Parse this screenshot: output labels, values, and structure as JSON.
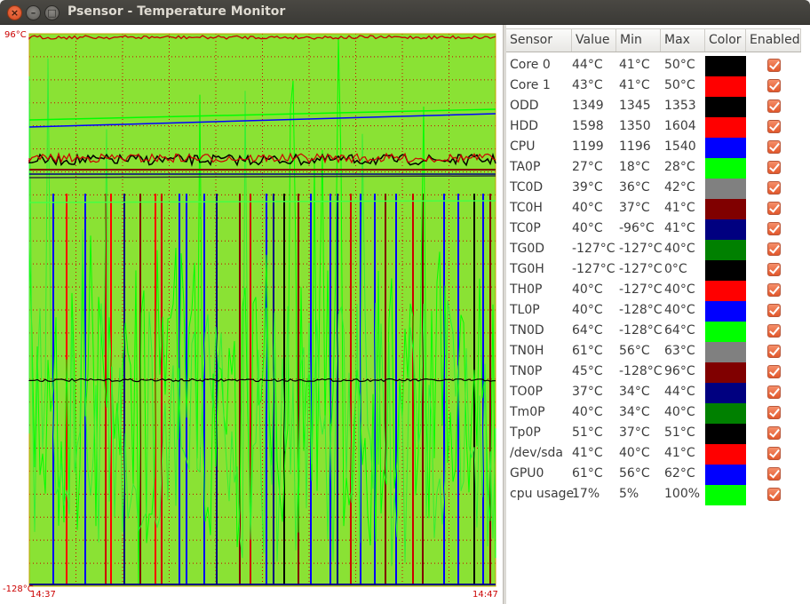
{
  "window": {
    "title": "Psensor - Temperature Monitor",
    "close_glyph": "×",
    "min_glyph": "–",
    "max_glyph": "□"
  },
  "graph": {
    "y_max_label": "96°C",
    "y_min_label": "-128°C",
    "x_start_label": "14:37",
    "x_end_label": "14:47",
    "background_color": "#8ae234",
    "grid_color": "#cc0000"
  },
  "table": {
    "headers": [
      "Sensor",
      "Value",
      "Min",
      "Max",
      "Color",
      "Enabled"
    ],
    "rows": [
      {
        "sensor": "Core 0",
        "value": "44°C",
        "min": "41°C",
        "max": "50°C",
        "color": "#000000",
        "enabled": true
      },
      {
        "sensor": "Core 1",
        "value": "43°C",
        "min": "41°C",
        "max": "50°C",
        "color": "#ff0000",
        "enabled": true
      },
      {
        "sensor": "ODD",
        "value": "1349",
        "min": "1345",
        "max": "1353",
        "color": "#000000",
        "enabled": true
      },
      {
        "sensor": "HDD",
        "value": "1598",
        "min": "1350",
        "max": "1604",
        "color": "#ff0000",
        "enabled": true
      },
      {
        "sensor": "CPU",
        "value": "1199",
        "min": "1196",
        "max": "1540",
        "color": "#0000ff",
        "enabled": true
      },
      {
        "sensor": "TA0P",
        "value": "27°C",
        "min": "18°C",
        "max": "28°C",
        "color": "#00ff00",
        "enabled": true
      },
      {
        "sensor": "TC0D",
        "value": "39°C",
        "min": "36°C",
        "max": "42°C",
        "color": "#808080",
        "enabled": true
      },
      {
        "sensor": "TC0H",
        "value": "40°C",
        "min": "37°C",
        "max": "41°C",
        "color": "#800000",
        "enabled": true
      },
      {
        "sensor": "TC0P",
        "value": "40°C",
        "min": "-96°C",
        "max": "41°C",
        "color": "#000080",
        "enabled": true
      },
      {
        "sensor": "TG0D",
        "value": "-127°C",
        "min": "-127°C",
        "max": "40°C",
        "color": "#008000",
        "enabled": true
      },
      {
        "sensor": "TG0H",
        "value": "-127°C",
        "min": "-127°C",
        "max": "0°C",
        "color": "#000000",
        "enabled": true
      },
      {
        "sensor": "TH0P",
        "value": "40°C",
        "min": "-127°C",
        "max": "40°C",
        "color": "#ff0000",
        "enabled": true
      },
      {
        "sensor": "TL0P",
        "value": "40°C",
        "min": "-128°C",
        "max": "40°C",
        "color": "#0000ff",
        "enabled": true
      },
      {
        "sensor": "TN0D",
        "value": "64°C",
        "min": "-128°C",
        "max": "64°C",
        "color": "#00ff00",
        "enabled": true
      },
      {
        "sensor": "TN0H",
        "value": "61°C",
        "min": "56°C",
        "max": "63°C",
        "color": "#808080",
        "enabled": true
      },
      {
        "sensor": "TN0P",
        "value": "45°C",
        "min": "-128°C",
        "max": "96°C",
        "color": "#800000",
        "enabled": true
      },
      {
        "sensor": "TO0P",
        "value": "37°C",
        "min": "34°C",
        "max": "44°C",
        "color": "#000080",
        "enabled": true
      },
      {
        "sensor": "Tm0P",
        "value": "40°C",
        "min": "34°C",
        "max": "40°C",
        "color": "#008000",
        "enabled": true
      },
      {
        "sensor": "Tp0P",
        "value": "51°C",
        "min": "37°C",
        "max": "51°C",
        "color": "#000000",
        "enabled": true
      },
      {
        "sensor": "/dev/sda",
        "value": "41°C",
        "min": "40°C",
        "max": "41°C",
        "color": "#ff0000",
        "enabled": true
      },
      {
        "sensor": "GPU0",
        "value": "61°C",
        "min": "56°C",
        "max": "62°C",
        "color": "#0000ff",
        "enabled": true
      },
      {
        "sensor": "cpu usage",
        "value": "17%",
        "min": "5%",
        "max": "100%",
        "color": "#00ff00",
        "enabled": true
      }
    ]
  }
}
